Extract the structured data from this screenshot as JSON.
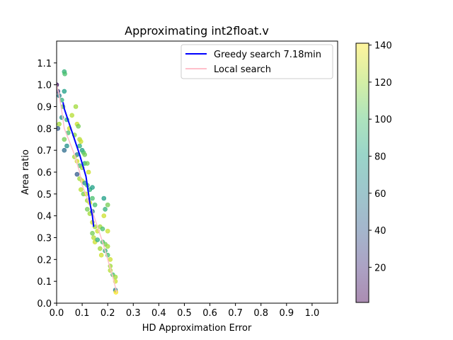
{
  "chart_data": {
    "type": "scatter",
    "title": "Approximating int2float.v",
    "xlabel": "HD Approximation Error",
    "ylabel": "Area ratio",
    "xlim": [
      0,
      1.1
    ],
    "ylim": [
      0,
      1.2
    ],
    "xticks": [
      "0.0",
      "0.1",
      "0.2",
      "0.3",
      "0.4",
      "0.5",
      "0.6",
      "0.7",
      "0.8",
      "0.9",
      "1.0"
    ],
    "yticks": [
      "0.0",
      "0.1",
      "0.2",
      "0.3",
      "0.4",
      "0.5",
      "0.6",
      "0.7",
      "0.8",
      "0.9",
      "1.0",
      "1.1"
    ],
    "colorbar": {
      "min": 1,
      "max": 141,
      "ticks": [
        "20",
        "40",
        "60",
        "80",
        "100",
        "120",
        "140"
      ],
      "colormap": "viridis"
    },
    "grid": false,
    "legend_position": "top-right",
    "legend": [
      {
        "label": "Greedy search 7.18min",
        "color": "#0000ff"
      },
      {
        "label": "Local search",
        "color": "#ffc0cb"
      }
    ],
    "series": [
      {
        "name": "Greedy search 7.18min",
        "color": "#0000ff",
        "x": [
          0.025,
          0.03,
          0.05,
          0.07,
          0.09,
          0.105,
          0.115,
          0.12,
          0.125,
          0.13,
          0.135,
          0.14,
          0.145
        ],
        "y": [
          0.92,
          0.89,
          0.82,
          0.75,
          0.68,
          0.62,
          0.58,
          0.54,
          0.5,
          0.46,
          0.43,
          0.4,
          0.35
        ]
      },
      {
        "name": "Local search",
        "color": "#ffc0cb",
        "x": [
          0.0,
          0.01,
          0.02,
          0.03,
          0.05,
          0.07,
          0.09,
          0.1,
          0.12,
          0.14,
          0.16,
          0.18,
          0.2,
          0.22,
          0.235
        ],
        "y": [
          1.0,
          0.95,
          0.88,
          0.8,
          0.74,
          0.68,
          0.6,
          0.54,
          0.48,
          0.42,
          0.35,
          0.28,
          0.2,
          0.12,
          0.05
        ]
      }
    ],
    "scatter_points": [
      {
        "x": 0.0,
        "y": 1.0,
        "c": 10
      },
      {
        "x": 0.005,
        "y": 0.97,
        "c": 30
      },
      {
        "x": 0.01,
        "y": 0.95,
        "c": 60
      },
      {
        "x": 0.02,
        "y": 0.93,
        "c": 90
      },
      {
        "x": 0.025,
        "y": 0.9,
        "c": 110
      },
      {
        "x": 0.03,
        "y": 1.06,
        "c": 90
      },
      {
        "x": 0.032,
        "y": 1.05,
        "c": 100
      },
      {
        "x": 0.03,
        "y": 0.97,
        "c": 80
      },
      {
        "x": 0.02,
        "y": 0.85,
        "c": 70
      },
      {
        "x": 0.01,
        "y": 0.82,
        "c": 120
      },
      {
        "x": 0.005,
        "y": 0.8,
        "c": 40
      },
      {
        "x": 0.04,
        "y": 0.84,
        "c": 90
      },
      {
        "x": 0.045,
        "y": 0.78,
        "c": 100
      },
      {
        "x": 0.05,
        "y": 0.8,
        "c": 130
      },
      {
        "x": 0.03,
        "y": 0.75,
        "c": 110
      },
      {
        "x": 0.04,
        "y": 0.72,
        "c": 70
      },
      {
        "x": 0.03,
        "y": 0.7,
        "c": 50
      },
      {
        "x": 0.06,
        "y": 0.86,
        "c": 125
      },
      {
        "x": 0.07,
        "y": 0.77,
        "c": 115
      },
      {
        "x": 0.075,
        "y": 0.9,
        "c": 120
      },
      {
        "x": 0.08,
        "y": 0.82,
        "c": 130
      },
      {
        "x": 0.085,
        "y": 0.81,
        "c": 110
      },
      {
        "x": 0.09,
        "y": 0.75,
        "c": 125
      },
      {
        "x": 0.095,
        "y": 0.74,
        "c": 130
      },
      {
        "x": 0.09,
        "y": 0.72,
        "c": 90
      },
      {
        "x": 0.1,
        "y": 0.7,
        "c": 80
      },
      {
        "x": 0.105,
        "y": 0.69,
        "c": 100
      },
      {
        "x": 0.11,
        "y": 0.68,
        "c": 110
      },
      {
        "x": 0.08,
        "y": 0.68,
        "c": 60
      },
      {
        "x": 0.07,
        "y": 0.67,
        "c": 120
      },
      {
        "x": 0.08,
        "y": 0.65,
        "c": 130
      },
      {
        "x": 0.09,
        "y": 0.63,
        "c": 100
      },
      {
        "x": 0.1,
        "y": 0.62,
        "c": 120
      },
      {
        "x": 0.11,
        "y": 0.64,
        "c": 90
      },
      {
        "x": 0.12,
        "y": 0.64,
        "c": 110
      },
      {
        "x": 0.125,
        "y": 0.6,
        "c": 130
      },
      {
        "x": 0.08,
        "y": 0.59,
        "c": 40
      },
      {
        "x": 0.09,
        "y": 0.57,
        "c": 120
      },
      {
        "x": 0.1,
        "y": 0.56,
        "c": 130
      },
      {
        "x": 0.11,
        "y": 0.55,
        "c": 70
      },
      {
        "x": 0.12,
        "y": 0.54,
        "c": 100
      },
      {
        "x": 0.095,
        "y": 0.52,
        "c": 125
      },
      {
        "x": 0.105,
        "y": 0.5,
        "c": 110
      },
      {
        "x": 0.115,
        "y": 0.5,
        "c": 130
      },
      {
        "x": 0.13,
        "y": 0.52,
        "c": 90
      },
      {
        "x": 0.14,
        "y": 0.53,
        "c": 80
      },
      {
        "x": 0.12,
        "y": 0.47,
        "c": 120
      },
      {
        "x": 0.13,
        "y": 0.46,
        "c": 130
      },
      {
        "x": 0.14,
        "y": 0.48,
        "c": 100
      },
      {
        "x": 0.12,
        "y": 0.43,
        "c": 110
      },
      {
        "x": 0.13,
        "y": 0.41,
        "c": 120
      },
      {
        "x": 0.14,
        "y": 0.42,
        "c": 60
      },
      {
        "x": 0.15,
        "y": 0.45,
        "c": 100
      },
      {
        "x": 0.14,
        "y": 0.37,
        "c": 130
      },
      {
        "x": 0.15,
        "y": 0.35,
        "c": 120
      },
      {
        "x": 0.16,
        "y": 0.33,
        "c": 130
      },
      {
        "x": 0.14,
        "y": 0.32,
        "c": 110
      },
      {
        "x": 0.145,
        "y": 0.3,
        "c": 125
      },
      {
        "x": 0.15,
        "y": 0.28,
        "c": 130
      },
      {
        "x": 0.16,
        "y": 0.29,
        "c": 90
      },
      {
        "x": 0.17,
        "y": 0.35,
        "c": 120
      },
      {
        "x": 0.18,
        "y": 0.34,
        "c": 100
      },
      {
        "x": 0.185,
        "y": 0.4,
        "c": 130
      },
      {
        "x": 0.19,
        "y": 0.43,
        "c": 90
      },
      {
        "x": 0.185,
        "y": 0.48,
        "c": 80
      },
      {
        "x": 0.2,
        "y": 0.45,
        "c": 110
      },
      {
        "x": 0.2,
        "y": 0.33,
        "c": 130
      },
      {
        "x": 0.17,
        "y": 0.25,
        "c": 120
      },
      {
        "x": 0.18,
        "y": 0.28,
        "c": 100
      },
      {
        "x": 0.19,
        "y": 0.27,
        "c": 110
      },
      {
        "x": 0.2,
        "y": 0.26,
        "c": 120
      },
      {
        "x": 0.2,
        "y": 0.22,
        "c": 100
      },
      {
        "x": 0.21,
        "y": 0.2,
        "c": 130
      },
      {
        "x": 0.21,
        "y": 0.17,
        "c": 120
      },
      {
        "x": 0.21,
        "y": 0.15,
        "c": 125
      },
      {
        "x": 0.22,
        "y": 0.13,
        "c": 100
      },
      {
        "x": 0.23,
        "y": 0.12,
        "c": 120
      },
      {
        "x": 0.23,
        "y": 0.1,
        "c": 130
      },
      {
        "x": 0.23,
        "y": 0.06,
        "c": 60
      },
      {
        "x": 0.232,
        "y": 0.05,
        "c": 140
      },
      {
        "x": 0.175,
        "y": 0.22,
        "c": 130
      },
      {
        "x": 0.19,
        "y": 0.24,
        "c": 90
      }
    ]
  }
}
